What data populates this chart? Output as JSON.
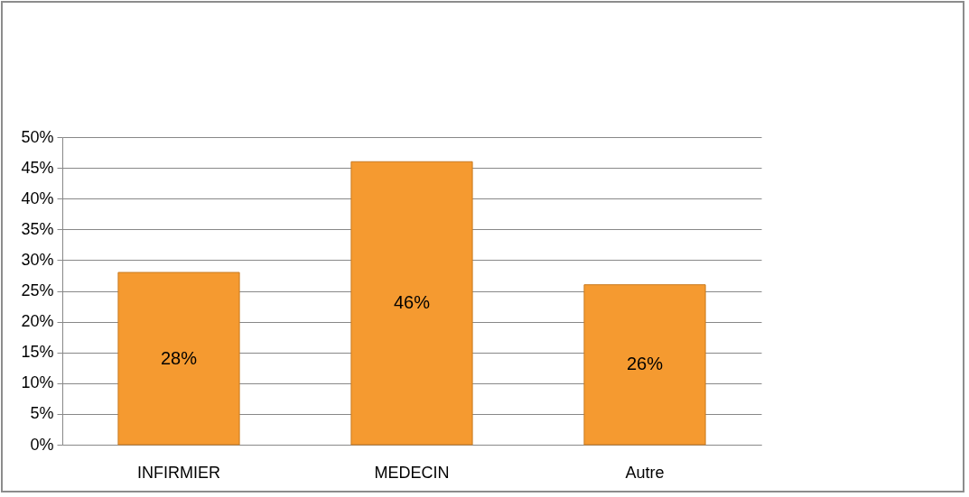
{
  "chart_data": {
    "type": "bar",
    "categories": [
      "INFIRMIER",
      "MEDECIN",
      "Autre"
    ],
    "values": [
      28,
      46,
      26
    ],
    "value_labels": [
      "28%",
      "46%",
      "26%"
    ],
    "color": "#f59a30",
    "ylim": [
      0,
      50
    ],
    "yticks": [
      {
        "value": 0,
        "label": "0%"
      },
      {
        "value": 5,
        "label": "5%"
      },
      {
        "value": 10,
        "label": "10%"
      },
      {
        "value": 15,
        "label": "15%"
      },
      {
        "value": 20,
        "label": "20%"
      },
      {
        "value": 25,
        "label": "25%"
      },
      {
        "value": 30,
        "label": "30%"
      },
      {
        "value": 35,
        "label": "35%"
      },
      {
        "value": 40,
        "label": "40%"
      },
      {
        "value": 45,
        "label": "45%"
      },
      {
        "value": 50,
        "label": "50%"
      }
    ],
    "grid": "y"
  }
}
